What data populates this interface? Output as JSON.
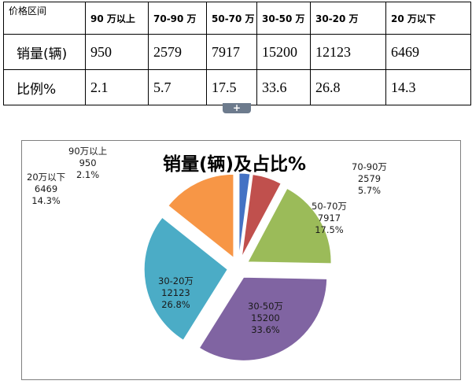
{
  "table": {
    "header": [
      "价格区间",
      "90 万以上",
      "70-90 万",
      "50-70 万",
      "30-50 万",
      "30-20 万",
      "20 万以下"
    ],
    "rows": [
      {
        "label": "销量(辆)",
        "values": [
          "950",
          "2579",
          "7917",
          "15200",
          "12123",
          "6469"
        ]
      },
      {
        "label": "比例%",
        "values": [
          "2.1",
          "5.7",
          "17.5",
          "33.6",
          "26.8",
          "14.3"
        ]
      }
    ]
  },
  "expand_handle": {
    "symbol": "+"
  },
  "chart_data": {
    "type": "pie",
    "title": "销量(辆)及占比%",
    "legend": "none",
    "slices": [
      {
        "name": "90万以上",
        "value": 950,
        "percent": "2.1%",
        "color": "#4472c4",
        "value_text": "950"
      },
      {
        "name": "70-90万",
        "value": 2579,
        "percent": "5.7%",
        "color": "#c0504d",
        "value_text": "2579"
      },
      {
        "name": "50-70万",
        "value": 7917,
        "percent": "17.5%",
        "color": "#9bbb59",
        "value_text": "7917"
      },
      {
        "name": "30-50万",
        "value": 15200,
        "percent": "33.6%",
        "color": "#8064a2",
        "value_text": "15200"
      },
      {
        "name": "30-20万",
        "value": 12123,
        "percent": "26.8%",
        "color": "#4bacc6",
        "value_text": "12123"
      },
      {
        "name": "20万以下",
        "value": 6469,
        "percent": "14.3%",
        "color": "#f79646",
        "value_text": "6469"
      }
    ]
  }
}
